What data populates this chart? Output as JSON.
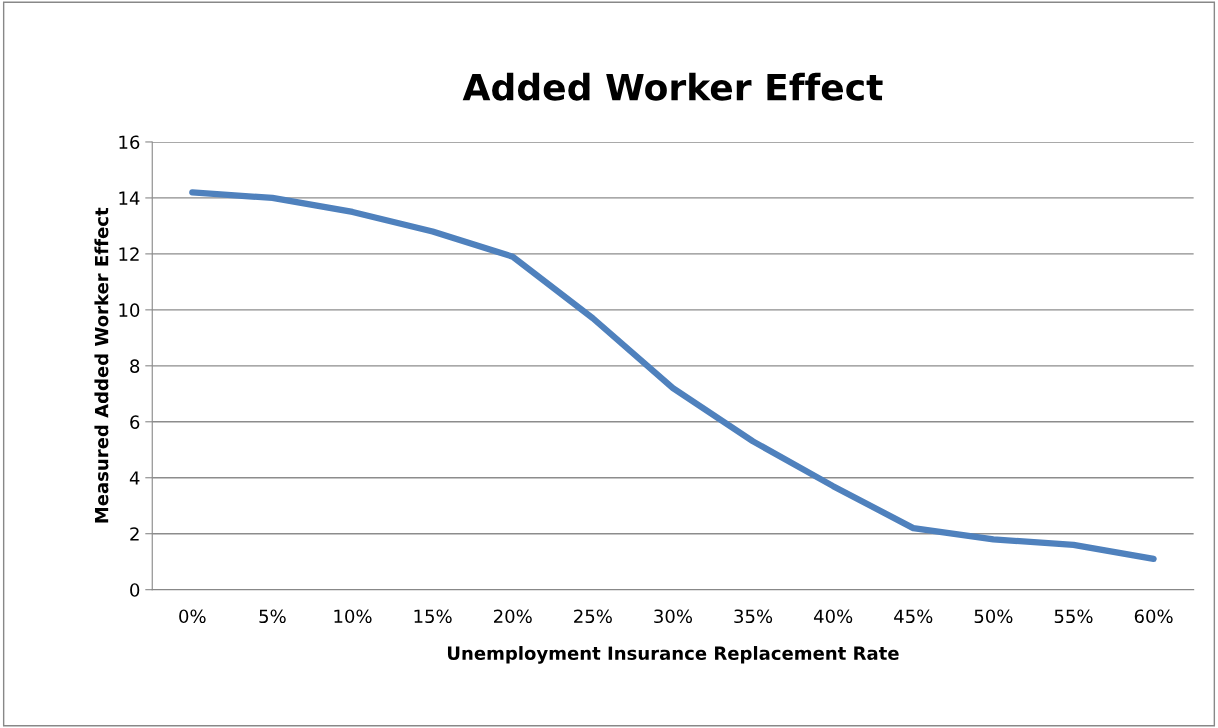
{
  "chart_data": {
    "type": "line",
    "title": "Added Worker Effect",
    "xlabel": "Unemployment Insurance Replacement Rate",
    "ylabel": "Measured Added Worker Effect",
    "categories": [
      "0%",
      "5%",
      "10%",
      "15%",
      "20%",
      "25%",
      "30%",
      "35%",
      "40%",
      "45%",
      "50%",
      "55%",
      "60%"
    ],
    "series": [
      {
        "color": "#4f81bd",
        "values": [
          14.2,
          14.0,
          13.5,
          12.8,
          11.9,
          9.7,
          7.2,
          5.3,
          3.7,
          2.2,
          1.8,
          1.6,
          1.1
        ]
      }
    ],
    "ylim": [
      0,
      16
    ],
    "yticks": [
      0,
      2,
      4,
      6,
      8,
      10,
      12,
      14,
      16
    ],
    "grid": "y",
    "marker": "none",
    "line_style": "solid"
  }
}
